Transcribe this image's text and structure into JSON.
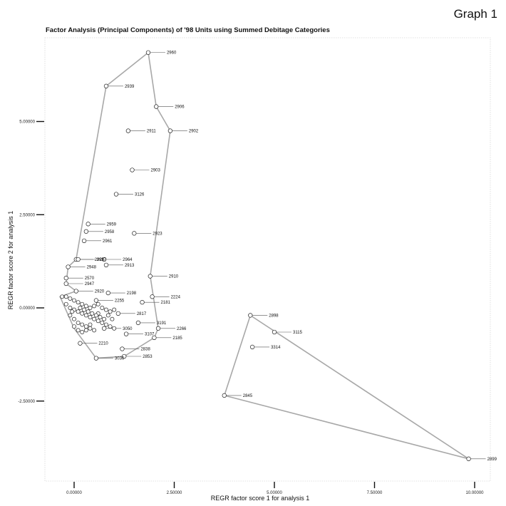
{
  "graph_label": "Graph 1",
  "chart_data": {
    "type": "scatter",
    "title": "Factor Analysis (Principal Components) of '98 Units using Summed Debitage Categories",
    "xlabel": "REGR factor score   1 for analysis   1",
    "ylabel": "REGR factor score   2 for analysis   1",
    "xlim": [
      -0.75,
      10.3
    ],
    "ylim": [
      -4.1,
      7.2
    ],
    "x_ticks": [
      0,
      2.5,
      5,
      7.5,
      10
    ],
    "x_tick_labels": [
      "0.00000",
      "2.50000",
      "5.00000",
      "7.50000",
      "10.00000"
    ],
    "y_ticks": [
      -2.5,
      0,
      2.5,
      5
    ],
    "y_tick_labels": [
      "-2.50000",
      "0.00000",
      "2.50000",
      "5.00000"
    ],
    "grid": false,
    "labeled_points": [
      {
        "label": "2960",
        "x": 1.85,
        "y": 6.85
      },
      {
        "label": "2939",
        "x": 0.8,
        "y": 5.95
      },
      {
        "label": "2906",
        "x": 2.05,
        "y": 5.4
      },
      {
        "label": "2911",
        "x": 1.35,
        "y": 4.75
      },
      {
        "label": "2902",
        "x": 2.4,
        "y": 4.75
      },
      {
        "label": "2903",
        "x": 1.45,
        "y": 3.7
      },
      {
        "label": "3126",
        "x": 1.05,
        "y": 3.05
      },
      {
        "label": "2959",
        "x": 0.35,
        "y": 2.25
      },
      {
        "label": "2958",
        "x": 0.3,
        "y": 2.05
      },
      {
        "label": "2923",
        "x": 1.5,
        "y": 2.0
      },
      {
        "label": "2961",
        "x": 0.25,
        "y": 1.8
      },
      {
        "label": "2928",
        "x": 0.05,
        "y": 1.3
      },
      {
        "label": "2937",
        "x": 0.1,
        "y": 1.3
      },
      {
        "label": "2964",
        "x": 0.75,
        "y": 1.3
      },
      {
        "label": "2913",
        "x": 0.8,
        "y": 1.15
      },
      {
        "label": "2948",
        "x": -0.15,
        "y": 1.1
      },
      {
        "label": "2910",
        "x": 1.9,
        "y": 0.85
      },
      {
        "label": "2570",
        "x": -0.2,
        "y": 0.8
      },
      {
        "label": "2947",
        "x": -0.2,
        "y": 0.65
      },
      {
        "label": "2920",
        "x": 0.05,
        "y": 0.45
      },
      {
        "label": "2198",
        "x": 0.85,
        "y": 0.4
      },
      {
        "label": "2224",
        "x": 1.95,
        "y": 0.3
      },
      {
        "label": "2181",
        "x": 1.7,
        "y": 0.15
      },
      {
        "label": "2255",
        "x": 0.55,
        "y": 0.2
      },
      {
        "label": "2817",
        "x": 1.1,
        "y": -0.15
      },
      {
        "label": "3191",
        "x": 1.6,
        "y": -0.4
      },
      {
        "label": "2266",
        "x": 2.1,
        "y": -0.55
      },
      {
        "label": "3107",
        "x": 1.3,
        "y": -0.7
      },
      {
        "label": "2185",
        "x": 2.0,
        "y": -0.8
      },
      {
        "label": "3050",
        "x": 0.75,
        "y": -0.55
      },
      {
        "label": "2210",
        "x": 0.15,
        "y": -0.95
      },
      {
        "label": "2838",
        "x": 1.2,
        "y": -1.1
      },
      {
        "label": "2853",
        "x": 1.25,
        "y": -1.3
      },
      {
        "label": "3036",
        "x": 0.55,
        "y": -1.35
      },
      {
        "label": "2898",
        "x": 4.4,
        "y": -0.2
      },
      {
        "label": "3115",
        "x": 5.0,
        "y": -0.65
      },
      {
        "label": "3314",
        "x": 4.45,
        "y": -1.05
      },
      {
        "label": "2845",
        "x": 3.75,
        "y": -2.35
      },
      {
        "label": "2899",
        "x": 9.85,
        "y": -4.05
      }
    ],
    "cluster_points": [
      [
        -0.3,
        0.3
      ],
      [
        -0.2,
        0.3
      ],
      [
        -0.1,
        0.25
      ],
      [
        0.0,
        0.2
      ],
      [
        0.1,
        0.15
      ],
      [
        0.2,
        0.1
      ],
      [
        0.3,
        0.05
      ],
      [
        0.4,
        0.0
      ],
      [
        0.5,
        0.05
      ],
      [
        0.6,
        0.1
      ],
      [
        0.7,
        0.0
      ],
      [
        0.8,
        -0.05
      ],
      [
        0.9,
        -0.1
      ],
      [
        1.0,
        -0.05
      ],
      [
        0.6,
        -0.15
      ],
      [
        -0.2,
        0.1
      ],
      [
        -0.1,
        0.0
      ],
      [
        0.0,
        -0.05
      ],
      [
        0.1,
        -0.1
      ],
      [
        0.2,
        -0.15
      ],
      [
        0.3,
        -0.2
      ],
      [
        0.4,
        -0.25
      ],
      [
        0.5,
        -0.3
      ],
      [
        0.6,
        -0.35
      ],
      [
        0.7,
        -0.4
      ],
      [
        0.8,
        -0.45
      ],
      [
        0.9,
        -0.5
      ],
      [
        1.0,
        -0.55
      ],
      [
        -0.1,
        -0.2
      ],
      [
        0.0,
        -0.3
      ],
      [
        0.1,
        -0.4
      ],
      [
        0.2,
        -0.45
      ],
      [
        0.3,
        -0.5
      ],
      [
        0.4,
        -0.55
      ],
      [
        0.5,
        -0.6
      ],
      [
        0.0,
        -0.5
      ],
      [
        0.1,
        -0.6
      ],
      [
        0.2,
        -0.65
      ],
      [
        0.3,
        -0.6
      ],
      [
        0.4,
        -0.45
      ],
      [
        0.55,
        -0.2
      ],
      [
        0.65,
        -0.25
      ],
      [
        0.75,
        -0.3
      ],
      [
        0.85,
        -0.2
      ],
      [
        0.95,
        -0.3
      ],
      [
        0.15,
        0.0
      ],
      [
        0.25,
        -0.05
      ],
      [
        0.35,
        -0.1
      ],
      [
        0.45,
        -0.15
      ],
      [
        -0.05,
        -0.1
      ]
    ],
    "hulls": [
      [
        [
          1.85,
          6.85
        ],
        [
          0.8,
          5.95
        ],
        [
          0.05,
          1.3
        ],
        [
          -0.15,
          1.1
        ],
        [
          -0.2,
          0.65
        ],
        [
          0.05,
          0.45
        ],
        [
          -0.35,
          0.3
        ],
        [
          0.0,
          -0.55
        ],
        [
          0.55,
          -1.35
        ],
        [
          1.25,
          -1.3
        ],
        [
          2.0,
          -0.8
        ],
        [
          2.1,
          -0.55
        ],
        [
          1.9,
          0.85
        ],
        [
          2.4,
          4.75
        ],
        [
          2.05,
          5.4
        ],
        [
          1.85,
          6.85
        ]
      ],
      [
        [
          4.4,
          -0.2
        ],
        [
          3.75,
          -2.35
        ],
        [
          9.85,
          -4.05
        ],
        [
          4.4,
          -0.2
        ]
      ]
    ]
  }
}
